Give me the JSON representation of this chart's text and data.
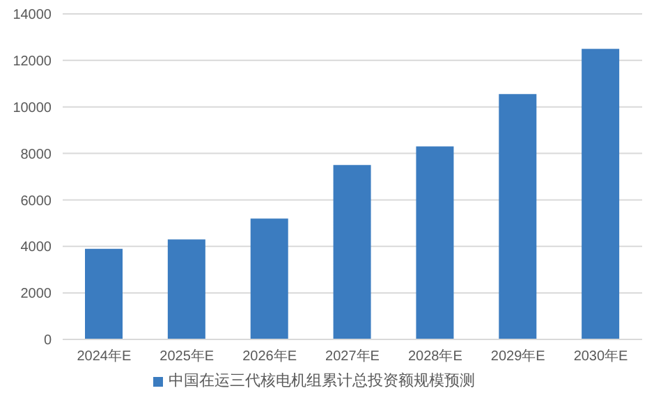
{
  "chart_data": {
    "type": "bar",
    "categories": [
      "2024年E",
      "2025年E",
      "2026年E",
      "2027年E",
      "2028年E",
      "2029年E",
      "2030年E"
    ],
    "series": [
      {
        "name": "中国在运三代核电机组累计总投资额规模预测",
        "color": "#3b7cc0",
        "values": [
          3900,
          4300,
          5200,
          7500,
          8300,
          10550,
          12500
        ]
      }
    ],
    "ylim": [
      0,
      14000
    ],
    "yticks": [
      0,
      2000,
      4000,
      6000,
      8000,
      10000,
      12000,
      14000
    ],
    "grid": "y",
    "legend": "bottom"
  }
}
